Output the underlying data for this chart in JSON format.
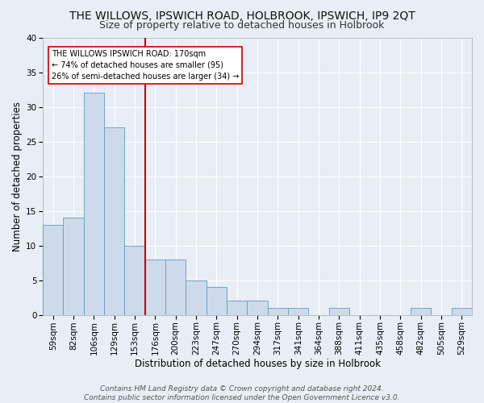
{
  "title": "THE WILLOWS, IPSWICH ROAD, HOLBROOK, IPSWICH, IP9 2QT",
  "subtitle": "Size of property relative to detached houses in Holbrook",
  "xlabel": "Distribution of detached houses by size in Holbrook",
  "ylabel": "Number of detached properties",
  "categories": [
    "59sqm",
    "82sqm",
    "106sqm",
    "129sqm",
    "153sqm",
    "176sqm",
    "200sqm",
    "223sqm",
    "247sqm",
    "270sqm",
    "294sqm",
    "317sqm",
    "341sqm",
    "364sqm",
    "388sqm",
    "411sqm",
    "435sqm",
    "458sqm",
    "482sqm",
    "505sqm",
    "529sqm"
  ],
  "values": [
    13,
    14,
    32,
    27,
    10,
    8,
    8,
    5,
    4,
    2,
    2,
    1,
    1,
    0,
    1,
    0,
    0,
    0,
    1,
    0,
    1
  ],
  "bar_color": "#cddaeb",
  "bar_edge_color": "#6699bb",
  "red_line_index": 5,
  "annotation_lines": [
    "THE WILLOWS IPSWICH ROAD: 170sqm",
    "← 74% of detached houses are smaller (95)",
    "26% of semi-detached houses are larger (34) →"
  ],
  "annotation_box_color": "#ffffff",
  "annotation_box_edge": "#cc0000",
  "red_line_color": "#cc0000",
  "background_color": "#e8eef5",
  "grid_color": "#ffffff",
  "ylim": [
    0,
    40
  ],
  "yticks": [
    0,
    5,
    10,
    15,
    20,
    25,
    30,
    35,
    40
  ],
  "footer": "Contains HM Land Registry data © Crown copyright and database right 2024.\nContains public sector information licensed under the Open Government Licence v3.0.",
  "title_fontsize": 10,
  "subtitle_fontsize": 9,
  "xlabel_fontsize": 8.5,
  "ylabel_fontsize": 8.5,
  "tick_fontsize": 7.5,
  "footer_fontsize": 6.5
}
